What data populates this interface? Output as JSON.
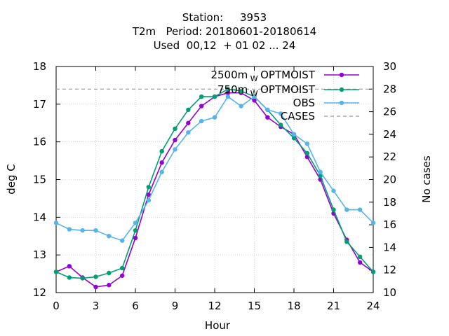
{
  "chart_data": {
    "type": "line",
    "title_lines": [
      "Station:     3953",
      "T2m   Period: 20180601-20180614",
      "Used  00,12  + 01 02 ... 24"
    ],
    "xlabel": "Hour",
    "ylabel": "deg C",
    "y2label": "No cases",
    "xlim": [
      0,
      24
    ],
    "ylim": [
      12,
      18
    ],
    "y2lim": [
      10,
      30
    ],
    "xticks": [
      0,
      3,
      6,
      9,
      12,
      15,
      18,
      21,
      24
    ],
    "yticks": [
      12,
      13,
      14,
      15,
      16,
      17,
      18
    ],
    "y2ticks": [
      10,
      12,
      14,
      16,
      18,
      20,
      22,
      24,
      26,
      28,
      30
    ],
    "grid": true,
    "legend_position": "top-right",
    "x": [
      0,
      1,
      2,
      3,
      4,
      5,
      6,
      7,
      8,
      9,
      10,
      11,
      12,
      13,
      14,
      15,
      16,
      17,
      18,
      19,
      20,
      21,
      22,
      23,
      24
    ],
    "series": [
      {
        "name": "2500m_OPTMOIST",
        "legend_main": "2500m",
        "legend_sub": "W",
        "legend_tail": "OPTMOIST",
        "color": "#9400d3",
        "axis": "y",
        "values": [
          12.55,
          12.7,
          12.4,
          12.15,
          12.2,
          12.45,
          13.45,
          14.6,
          15.45,
          16.05,
          16.5,
          16.95,
          17.2,
          17.3,
          17.3,
          17.1,
          16.65,
          16.4,
          16.2,
          15.6,
          15.0,
          14.1,
          13.4,
          12.8,
          12.55
        ]
      },
      {
        "name": "750m_OPTMOIST",
        "legend_main": "750m",
        "legend_sub": "W",
        "legend_tail": "OPTMOIST",
        "color": "#009e73",
        "axis": "y",
        "values": [
          12.55,
          12.4,
          12.38,
          12.42,
          12.52,
          12.65,
          13.65,
          14.8,
          15.75,
          16.35,
          16.85,
          17.2,
          17.2,
          17.4,
          17.35,
          17.2,
          16.85,
          16.45,
          16.1,
          15.7,
          15.1,
          14.2,
          13.35,
          12.95,
          12.55
        ]
      },
      {
        "name": "OBS",
        "legend_main": "OBS",
        "legend_sub": "",
        "legend_tail": "",
        "color": "#56b4e9",
        "axis": "y",
        "values": [
          13.85,
          13.68,
          13.65,
          13.65,
          13.5,
          13.38,
          13.85,
          14.45,
          15.2,
          15.8,
          16.25,
          16.55,
          16.65,
          17.2,
          16.95,
          17.2,
          16.85,
          16.75,
          16.2,
          15.95,
          15.2,
          14.7,
          14.2,
          14.2,
          13.85
        ]
      },
      {
        "name": "CASES",
        "legend_main": "CASES",
        "legend_sub": "",
        "legend_tail": "",
        "color": "#999999",
        "axis": "y2",
        "dashed": true,
        "values": [
          28,
          28,
          28,
          28,
          28,
          28,
          28,
          28,
          28,
          28,
          28,
          28,
          28,
          28,
          28,
          28,
          28,
          28,
          28,
          28,
          28,
          28,
          28,
          28,
          28
        ]
      }
    ]
  }
}
